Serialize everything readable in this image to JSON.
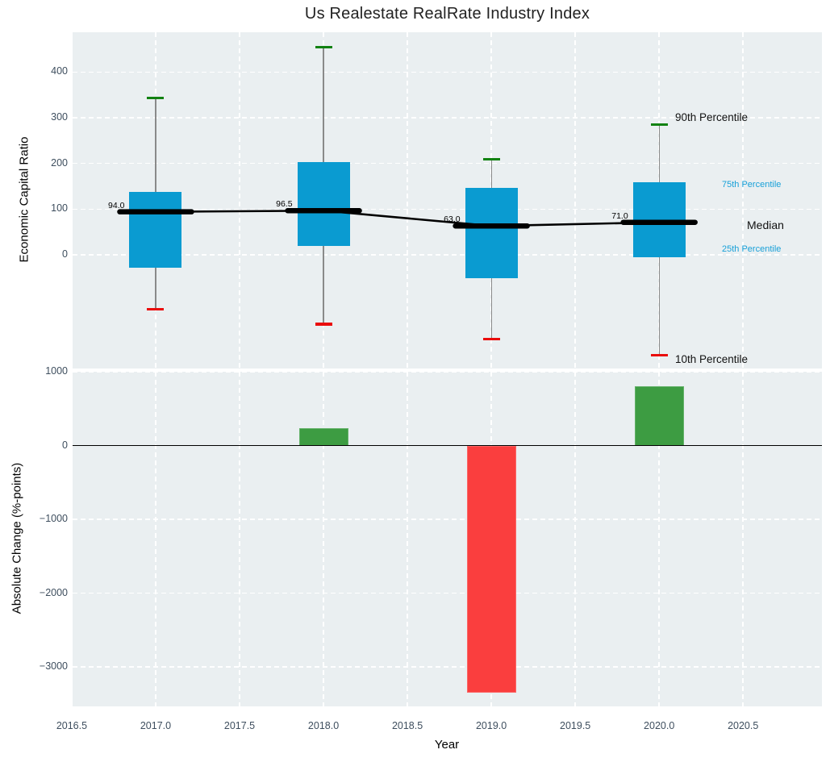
{
  "title": "Us Realestate RealRate Industry Index",
  "chart_data": {
    "type": "box-and-bar",
    "title": "Us Realestate RealRate Industry Index",
    "xlabel": "Year",
    "xlim": [
      2016.505,
      2020.97
    ],
    "xticks": [
      {
        "v": 2016.5,
        "label": "2016.5"
      },
      {
        "v": 2017.0,
        "label": "2017.0"
      },
      {
        "v": 2017.5,
        "label": "2017.5"
      },
      {
        "v": 2018.0,
        "label": "2018.0"
      },
      {
        "v": 2018.5,
        "label": "2018.5"
      },
      {
        "v": 2019.0,
        "label": "2019.0"
      },
      {
        "v": 2019.5,
        "label": "2019.5"
      },
      {
        "v": 2020.0,
        "label": "2020.0"
      },
      {
        "v": 2020.5,
        "label": "2020.5"
      }
    ],
    "top": {
      "ylabel": "Economic Capital Ratio",
      "ylim": [
        -249,
        487
      ],
      "yticks": [
        {
          "v": 0,
          "label": "0"
        },
        {
          "v": 100,
          "label": "100"
        },
        {
          "v": 200,
          "label": "200"
        },
        {
          "v": 300,
          "label": "300"
        },
        {
          "v": 400,
          "label": "400"
        }
      ],
      "grid_values": [
        0,
        100,
        200,
        300,
        400
      ],
      "boxes": [
        {
          "year": 2017,
          "p10": -120,
          "p25": -28,
          "median": 94,
          "p75": 138,
          "p90": 343,
          "median_label": "94.0"
        },
        {
          "year": 2018,
          "p10": -152,
          "p25": 20,
          "median": 96.5,
          "p75": 202,
          "p90": 455,
          "median_label": "96.5"
        },
        {
          "year": 2019,
          "p10": -184,
          "p25": -52,
          "median": 63,
          "p75": 147,
          "p90": 209,
          "median_label": "63.0"
        },
        {
          "year": 2020,
          "p10": -220,
          "p25": -5,
          "median": 71,
          "p75": 159,
          "p90": 285,
          "median_label": "71.0"
        }
      ],
      "legend": [
        {
          "id": "p90",
          "label": "90th Percentile",
          "color": "#111111",
          "size": 13.5
        },
        {
          "id": "p75",
          "label": "75th Percentile",
          "color": "#18a0d8",
          "size": 11
        },
        {
          "id": "median",
          "label": "Median",
          "color": "#111111",
          "size": 14
        },
        {
          "id": "p25",
          "label": "25th Percentile",
          "color": "#18a0d8",
          "size": 11
        },
        {
          "id": "p10",
          "label": "10th Percentile",
          "color": "#111111",
          "size": 13.5
        }
      ]
    },
    "bottom": {
      "ylabel": "Absolute Change (%-points)",
      "ylim": [
        -3533,
        1000
      ],
      "yticks": [
        {
          "v": 1000,
          "label": "1000"
        },
        {
          "v": 0,
          "label": "0"
        },
        {
          "v": -1000,
          "label": "−1000"
        },
        {
          "v": -2000,
          "label": "−2000"
        },
        {
          "v": -3000,
          "label": "−3000"
        }
      ],
      "grid_values": [
        1000,
        -1000,
        -2000,
        -3000
      ],
      "bars": [
        {
          "year": 2018,
          "value": 230
        },
        {
          "year": 2019,
          "value": -3350
        },
        {
          "year": 2020,
          "value": 800
        }
      ]
    },
    "colors": {
      "axes_bg": "#eaeff1",
      "box_fill": "#0a9bd1",
      "median_line": "#000000",
      "whisker": "#8a8a8a",
      "cap_high": "#128212",
      "cap_low": "#ea0c0c",
      "bar_positive": "#3d9c42",
      "bar_negative": "#fa3e3e",
      "zero_line": "#000000",
      "tick_label": "#3e4e5e"
    }
  }
}
